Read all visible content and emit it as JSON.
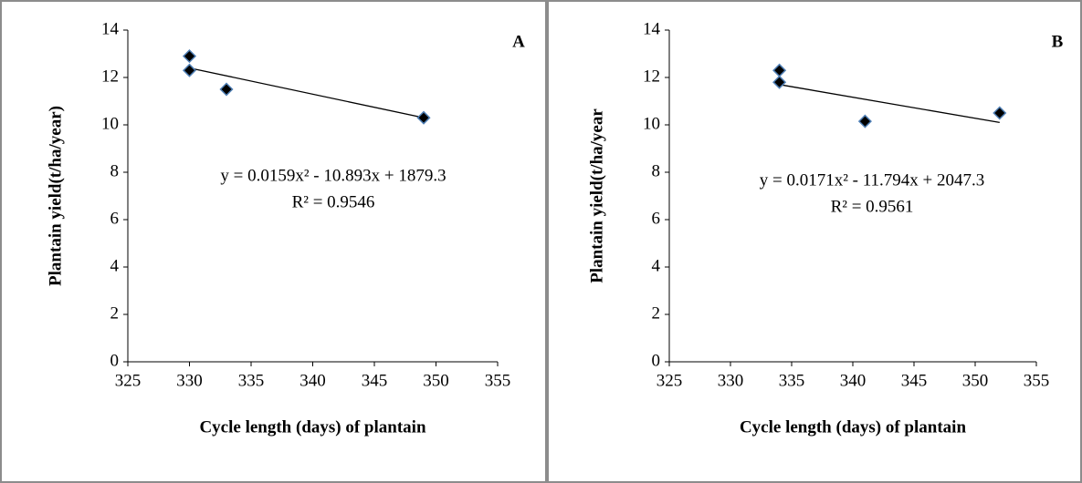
{
  "chart_data": [
    {
      "type": "scatter",
      "panel_label": "A",
      "y_label": "Plantain yield(t/ha/year)",
      "x_label": "Cycle length (days) of plantain",
      "x": [
        330,
        330,
        333,
        349
      ],
      "values": [
        12.9,
        12.3,
        11.5,
        10.3
      ],
      "marker_color": "#000000",
      "marker_edge": "#4f7fb5",
      "trendline": {
        "x": [
          330,
          349
        ],
        "values": [
          12.4,
          10.3
        ]
      },
      "equation": "y = 0.0159x² - 10.893x + 1879.3",
      "r_squared": "R² = 0.9546",
      "xlim": [
        325,
        355
      ],
      "xticks": [
        325,
        330,
        335,
        340,
        345,
        350,
        355
      ],
      "ylim": [
        0,
        14
      ],
      "yticks": [
        0,
        2,
        4,
        6,
        8,
        10,
        12,
        14
      ]
    },
    {
      "type": "scatter",
      "panel_label": "B",
      "y_label": "Plantain yield(t/ha/year",
      "x_label": "Cycle length (days) of plantain",
      "x": [
        334,
        334,
        341,
        352
      ],
      "values": [
        12.3,
        11.8,
        10.15,
        10.5
      ],
      "marker_color": "#000000",
      "marker_edge": "#4f7fb5",
      "trendline": {
        "x": [
          334,
          352
        ],
        "values": [
          11.7,
          10.1
        ]
      },
      "equation": "y = 0.0171x² - 11.794x + 2047.3",
      "r_squared": "R² = 0.9561",
      "xlim": [
        325,
        355
      ],
      "xticks": [
        325,
        330,
        335,
        340,
        345,
        350,
        355
      ],
      "ylim": [
        0,
        14
      ],
      "yticks": [
        0,
        2,
        4,
        6,
        8,
        10,
        12,
        14
      ]
    }
  ]
}
